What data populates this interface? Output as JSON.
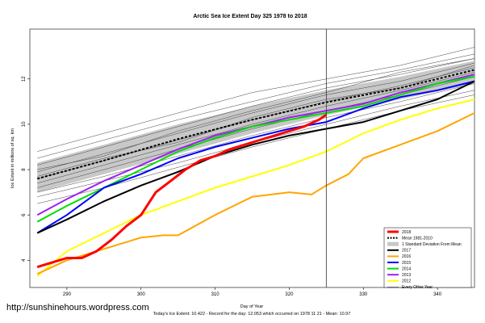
{
  "source_url": "http://sunshinehours.wordpress.com",
  "chart_data": {
    "type": "line",
    "title": "Arctic Sea Ice Extent Day 325 1978 to 2018",
    "xlabel": "Day of Year",
    "ylabel": "Ice Extent in millions of sq. km",
    "caption": "Today's Ice Extent: 10.422  - Record for the day: 12.053 which occurred on 1978 11 21  - Mean: 10.97",
    "xlim": [
      285,
      345
    ],
    "ylim": [
      2.8,
      14.2
    ],
    "xticks": [
      290,
      300,
      310,
      320,
      330,
      340
    ],
    "yticks": [
      4,
      6,
      8,
      10,
      12
    ],
    "current_day_marker": 325,
    "grid": false,
    "legend_position": "bottom-right",
    "legend": [
      {
        "label": "2018",
        "color": "#ff0000",
        "style": "thick"
      },
      {
        "label": "Mean 1981-2010",
        "color": "#000000",
        "style": "dotted"
      },
      {
        "label": "1 Standard Deviation From Mean",
        "color": "#c8c8c8",
        "style": "box"
      },
      {
        "label": "2017",
        "color": "#000000",
        "style": "solid"
      },
      {
        "label": "2016",
        "color": "#ffa500",
        "style": "solid"
      },
      {
        "label": "2015",
        "color": "#0000ff",
        "style": "solid"
      },
      {
        "label": "2014",
        "color": "#00dd00",
        "style": "solid"
      },
      {
        "label": "2013",
        "color": "#a020f0",
        "style": "solid"
      },
      {
        "label": "2012",
        "color": "#ffff00",
        "style": "solid"
      },
      {
        "label": "Every Other Year",
        "color": "#555555",
        "style": "thin"
      }
    ],
    "mean_band": {
      "x": [
        286,
        295,
        305,
        315,
        325,
        335,
        345
      ],
      "upper": [
        8.3,
        9.1,
        10.0,
        10.8,
        11.5,
        12.1,
        12.8
      ],
      "lower": [
        7.0,
        7.8,
        8.7,
        9.6,
        10.4,
        11.1,
        11.8
      ]
    },
    "mean_line": {
      "x": [
        286,
        295,
        305,
        315,
        325,
        335,
        345
      ],
      "values": [
        7.6,
        8.4,
        9.35,
        10.2,
        10.97,
        11.6,
        12.4
      ]
    },
    "series": [
      {
        "name": "2018",
        "color": "#ff0000",
        "width": 3,
        "x": [
          286,
          288,
          290,
          292,
          294,
          296,
          298,
          300,
          302,
          304,
          306,
          308,
          310,
          312,
          314,
          316,
          318,
          320,
          322,
          324,
          325
        ],
        "values": [
          3.7,
          3.9,
          4.1,
          4.1,
          4.4,
          4.9,
          5.5,
          6.0,
          7.0,
          7.5,
          8.0,
          8.4,
          8.6,
          8.9,
          9.1,
          9.3,
          9.5,
          9.7,
          9.9,
          10.2,
          10.42
        ]
      },
      {
        "name": "2017",
        "color": "#000000",
        "width": 2,
        "x": [
          286,
          290,
          295,
          300,
          305,
          310,
          315,
          320,
          325,
          330,
          335,
          340,
          345
        ],
        "values": [
          5.2,
          5.8,
          6.6,
          7.3,
          7.9,
          8.6,
          9.1,
          9.5,
          9.8,
          10.1,
          10.6,
          11.1,
          11.9
        ]
      },
      {
        "name": "2016",
        "color": "#ffa500",
        "width": 2,
        "x": [
          286,
          290,
          295,
          300,
          303,
          305,
          310,
          315,
          320,
          323,
          325,
          328,
          330,
          335,
          340,
          345
        ],
        "values": [
          3.4,
          4.0,
          4.5,
          5.0,
          5.1,
          5.1,
          6.0,
          6.8,
          7.0,
          6.9,
          7.3,
          7.8,
          8.5,
          9.1,
          9.7,
          10.5
        ]
      },
      {
        "name": "2015",
        "color": "#0000ff",
        "width": 2,
        "x": [
          286,
          290,
          295,
          300,
          305,
          310,
          315,
          320,
          325,
          330,
          335,
          340,
          345
        ],
        "values": [
          5.2,
          6.0,
          7.2,
          7.8,
          8.5,
          9.0,
          9.4,
          9.8,
          10.1,
          10.7,
          11.2,
          11.5,
          11.9
        ]
      },
      {
        "name": "2014",
        "color": "#00dd00",
        "width": 2,
        "x": [
          286,
          290,
          295,
          300,
          305,
          310,
          315,
          320,
          325,
          330,
          335,
          340,
          345
        ],
        "values": [
          5.7,
          6.4,
          7.2,
          8.0,
          8.8,
          9.4,
          9.9,
          10.2,
          10.5,
          10.8,
          11.3,
          11.8,
          12.1
        ]
      },
      {
        "name": "2013",
        "color": "#a020f0",
        "width": 2,
        "x": [
          286,
          290,
          295,
          300,
          305,
          310,
          315,
          320,
          325,
          330,
          335,
          340,
          345
        ],
        "values": [
          6.0,
          6.7,
          7.5,
          8.2,
          8.9,
          9.5,
          9.9,
          10.3,
          10.6,
          10.9,
          11.4,
          11.8,
          12.2
        ]
      },
      {
        "name": "2012",
        "color": "#ffff00",
        "width": 2,
        "x": [
          286,
          290,
          295,
          300,
          305,
          310,
          315,
          320,
          325,
          330,
          335,
          340,
          345
        ],
        "values": [
          3.3,
          4.4,
          5.2,
          6.0,
          6.6,
          7.2,
          7.7,
          8.2,
          8.8,
          9.6,
          10.2,
          10.7,
          11.1
        ]
      }
    ],
    "other_years": {
      "x": [
        286,
        295,
        305,
        315,
        325,
        335,
        345
      ],
      "series": [
        [
          8.8,
          9.6,
          10.5,
          11.4,
          12.0,
          12.6,
          13.4
        ],
        [
          8.5,
          9.3,
          10.2,
          11.0,
          11.8,
          12.4,
          13.1
        ],
        [
          8.2,
          9.0,
          9.9,
          10.8,
          11.6,
          12.2,
          12.9
        ],
        [
          7.9,
          8.7,
          9.6,
          10.5,
          11.3,
          11.9,
          12.7
        ],
        [
          7.6,
          8.4,
          9.3,
          10.2,
          11.0,
          11.7,
          12.5
        ],
        [
          7.4,
          8.2,
          9.1,
          10.0,
          10.8,
          11.5,
          12.3
        ],
        [
          7.2,
          8.0,
          8.9,
          9.8,
          10.6,
          11.3,
          12.1
        ],
        [
          7.0,
          7.7,
          8.6,
          9.5,
          10.3,
          11.0,
          11.8
        ],
        [
          6.8,
          7.5,
          8.3,
          9.2,
          10.0,
          10.8,
          11.5
        ],
        [
          6.5,
          7.2,
          8.1,
          9.0,
          9.8,
          10.6,
          11.3
        ],
        [
          8.0,
          8.6,
          9.7,
          10.6,
          11.4,
          12.3,
          12.9
        ],
        [
          7.7,
          8.5,
          9.2,
          10.3,
          11.1,
          11.6,
          12.6
        ]
      ]
    }
  }
}
